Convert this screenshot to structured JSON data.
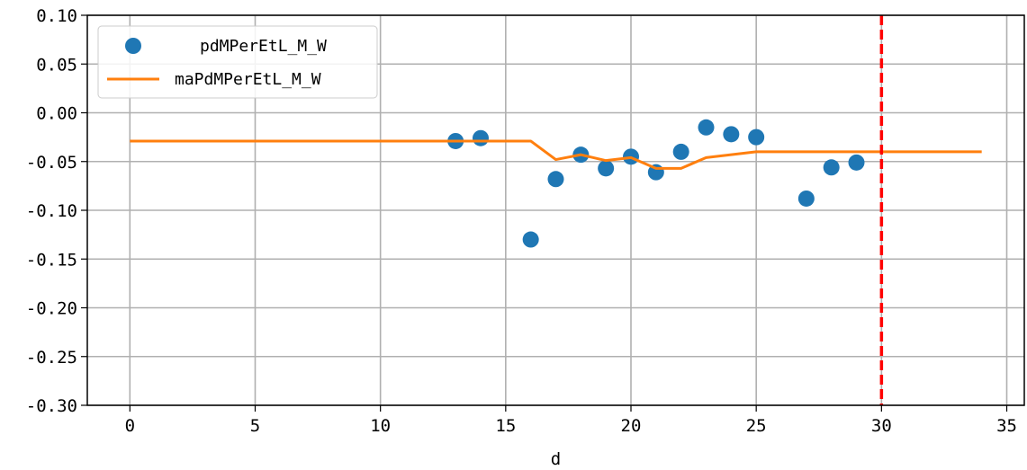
{
  "chart_data": {
    "type": "scatter",
    "xlabel": "d",
    "ylabel": "",
    "title": "",
    "xlim": [
      -1.7,
      35.7
    ],
    "ylim": [
      -0.3,
      0.1
    ],
    "xticks": [
      0,
      5,
      10,
      15,
      20,
      25,
      30,
      35
    ],
    "yticks": [
      0.1,
      0.05,
      0.0,
      -0.05,
      -0.1,
      -0.15,
      -0.2,
      -0.25,
      -0.3
    ],
    "xtick_labels": [
      "0",
      "5",
      "10",
      "15",
      "20",
      "25",
      "30",
      "35"
    ],
    "ytick_labels": [
      "0.10",
      "0.05",
      "0.00",
      "-0.05",
      "-0.10",
      "-0.15",
      "-0.20",
      "-0.25",
      "-0.30"
    ],
    "grid": true,
    "legend_position": "upper-left",
    "series": [
      {
        "name": "pdMPerEtL_M_W",
        "kind": "scatter",
        "color": "#1f77b4",
        "x": [
          13,
          14,
          16,
          17,
          18,
          19,
          20,
          21,
          22,
          23,
          24,
          25,
          27,
          28,
          29
        ],
        "y": [
          -0.029,
          -0.026,
          -0.13,
          -0.068,
          -0.043,
          -0.057,
          -0.045,
          -0.061,
          -0.04,
          -0.015,
          -0.022,
          -0.025,
          -0.088,
          -0.056,
          -0.051
        ]
      },
      {
        "name": "maPdMPerEtL_M_W",
        "kind": "line",
        "color": "#ff7f0e",
        "x": [
          0,
          16,
          17,
          18,
          19,
          20,
          21,
          22,
          23,
          24,
          25,
          34
        ],
        "y": [
          -0.029,
          -0.029,
          -0.048,
          -0.043,
          -0.049,
          -0.046,
          -0.057,
          -0.057,
          -0.046,
          -0.043,
          -0.04,
          -0.04
        ]
      }
    ],
    "vlines": [
      {
        "x": 30,
        "color": "#ff0000",
        "style": "dashed"
      }
    ]
  }
}
